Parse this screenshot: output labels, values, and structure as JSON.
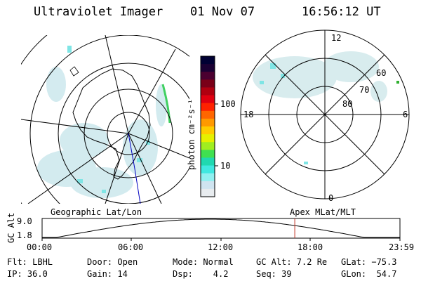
{
  "header": {
    "instrument": "Ultraviolet Imager",
    "date": "01 Nov 07",
    "time": "16:56:12 UT"
  },
  "colorbar": {
    "unit_label": "photon cm⁻²s⁻¹",
    "ticks": [
      "100",
      "10"
    ],
    "colors": [
      "#000033",
      "#1a0033",
      "#4b0030",
      "#7a0018",
      "#b00010",
      "#e00010",
      "#ff2200",
      "#ff6600",
      "#ff9900",
      "#ffcc00",
      "#e6f000",
      "#a0ee20",
      "#40e050",
      "#20d8b0",
      "#40e8e0",
      "#90f0f0",
      "#cfe4f0",
      "#e8ecef"
    ]
  },
  "map_left": {
    "caption": "Geographic Lat/Lon"
  },
  "map_right": {
    "caption": "Apex MLat/MLT",
    "mlt_labels": {
      "top": "12",
      "bottom": "0",
      "left": "18",
      "right": "6"
    },
    "lat_labels": [
      "60",
      "70",
      "80"
    ]
  },
  "timeline": {
    "axis_title": "GC Alt",
    "y_ticks": [
      "9.0",
      "1.8"
    ],
    "x_ticks": [
      "00:00",
      "06:00",
      "12:00",
      "18:00",
      "23:59"
    ],
    "current_fraction": 0.706
  },
  "status": {
    "flt": "Flt: LBHL",
    "ip": "IP: 36.0",
    "door": "Door: Open",
    "gain": "Gain: 14",
    "mode": "Mode: Normal",
    "dsp": "Dsp:    4.2",
    "gcalt": "GC Alt: 7.2 Re",
    "seq": "Seq: 39",
    "glat": "GLat: −75.3",
    "glon": "GLon:  54.7"
  }
}
